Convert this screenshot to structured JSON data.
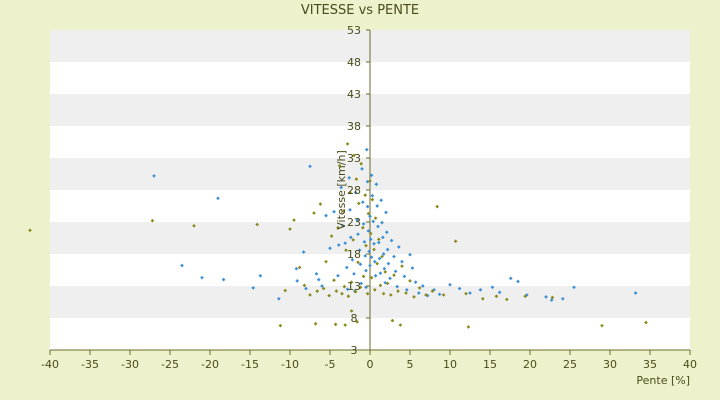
{
  "chart_data": {
    "type": "scatter",
    "title": "VITESSE vs PENTE",
    "xlabel": "Pente [%]",
    "ylabel": "Vitesse [km/h]",
    "xlim": [
      -40,
      40
    ],
    "ylim": [
      3,
      53
    ],
    "x_ticks": [
      -40,
      -35,
      -30,
      -25,
      -20,
      -15,
      -10,
      -5,
      0,
      5,
      10,
      15,
      20,
      25,
      30,
      35,
      40
    ],
    "y_ticks": [
      3,
      8,
      13,
      18,
      23,
      28,
      33,
      38,
      43,
      48,
      53
    ],
    "grid": "horizontal bands",
    "colors": {
      "background": "#eef2cc",
      "band_light": "#ffffff",
      "band_dark": "#efefef",
      "axis": "#6b6b2a",
      "series_blue": "#3a8fd8",
      "series_olive": "#8a8a1c"
    },
    "series": [
      {
        "color": "#3a8fd8",
        "points": [
          [
            -27,
            30.2
          ],
          [
            -19,
            26.7
          ],
          [
            -23.5,
            16.2
          ],
          [
            -21,
            14.3
          ],
          [
            -18.3,
            14.0
          ],
          [
            -14.6,
            12.7
          ],
          [
            -13.7,
            14.6
          ],
          [
            -11.4,
            11.0
          ],
          [
            -9.2,
            15.7
          ],
          [
            -9.1,
            13.8
          ],
          [
            -8.3,
            18.3
          ],
          [
            -8,
            12.6
          ],
          [
            -7.5,
            31.7
          ],
          [
            -6.7,
            14.9
          ],
          [
            -6.4,
            14.0
          ],
          [
            -6,
            13.0
          ],
          [
            -5.5,
            24.0
          ],
          [
            -5,
            18.9
          ],
          [
            -4.5,
            24.6
          ],
          [
            -4,
            14.6
          ],
          [
            -3.9,
            19.4
          ],
          [
            -3.6,
            28.4
          ],
          [
            -3.4,
            22.4
          ],
          [
            -3.1,
            19.7
          ],
          [
            -2.9,
            15.9
          ],
          [
            -2.8,
            12.5
          ],
          [
            -2.6,
            29.9
          ],
          [
            -2.5,
            24.9
          ],
          [
            -2.4,
            20.6
          ],
          [
            -2.2,
            17.1
          ],
          [
            -2,
            14.9
          ],
          [
            -1.9,
            12.2
          ],
          [
            -1.8,
            27.6
          ],
          [
            -1.6,
            23.3
          ],
          [
            -1.5,
            21.1
          ],
          [
            -1.3,
            18.6
          ],
          [
            -1.2,
            16.4
          ],
          [
            -1.1,
            13.4
          ],
          [
            -1,
            31.3
          ],
          [
            -0.9,
            26.1
          ],
          [
            -0.8,
            22.7
          ],
          [
            -0.7,
            19.9
          ],
          [
            -0.6,
            17.7
          ],
          [
            -0.5,
            15.4
          ],
          [
            -0.5,
            12.8
          ],
          [
            -0.4,
            34.3
          ],
          [
            -0.3,
            29.3
          ],
          [
            -0.3,
            25.4
          ],
          [
            -0.2,
            21.6
          ],
          [
            -0.1,
            18.4
          ],
          [
            0,
            16.2
          ],
          [
            0,
            23.9
          ],
          [
            0.1,
            20.3
          ],
          [
            0.2,
            17.5
          ],
          [
            0.2,
            30.3
          ],
          [
            0.3,
            27.1
          ],
          [
            0.4,
            23.1
          ],
          [
            0.5,
            19.6
          ],
          [
            0.6,
            16.8
          ],
          [
            0.7,
            14.6
          ],
          [
            0.8,
            28.9
          ],
          [
            0.9,
            25.5
          ],
          [
            1,
            22.3
          ],
          [
            1.1,
            19.8
          ],
          [
            1.2,
            17.3
          ],
          [
            1.3,
            15.0
          ],
          [
            1.4,
            26.4
          ],
          [
            1.5,
            22.9
          ],
          [
            1.6,
            20.6
          ],
          [
            1.7,
            18.0
          ],
          [
            1.8,
            15.7
          ],
          [
            1.9,
            13.5
          ],
          [
            2,
            24.5
          ],
          [
            2.1,
            21.4
          ],
          [
            2.2,
            18.7
          ],
          [
            2.3,
            16.5
          ],
          [
            2.5,
            14.2
          ],
          [
            2.7,
            20.1
          ],
          [
            3,
            17.6
          ],
          [
            3.2,
            15.3
          ],
          [
            3.4,
            12.9
          ],
          [
            3.6,
            19.1
          ],
          [
            4,
            16.8
          ],
          [
            4.3,
            14.5
          ],
          [
            4.6,
            12.4
          ],
          [
            5,
            17.9
          ],
          [
            5.3,
            15.8
          ],
          [
            5.7,
            13.6
          ],
          [
            6.1,
            11.9
          ],
          [
            6.6,
            13.0
          ],
          [
            7.2,
            11.5
          ],
          [
            8,
            12.4
          ],
          [
            8.7,
            11.7
          ],
          [
            10,
            13.2
          ],
          [
            11.2,
            12.6
          ],
          [
            12.5,
            11.9
          ],
          [
            13.8,
            12.4
          ],
          [
            15.3,
            12.8
          ],
          [
            16.2,
            12.0
          ],
          [
            17.6,
            14.2
          ],
          [
            18.5,
            13.7
          ],
          [
            19.6,
            11.6
          ],
          [
            22,
            11.3
          ],
          [
            22.7,
            10.8
          ],
          [
            24.1,
            11.0
          ],
          [
            25.5,
            12.8
          ],
          [
            33.2,
            11.9
          ]
        ]
      },
      {
        "color": "#8a8a1c",
        "points": [
          [
            -42.5,
            21.7
          ],
          [
            -27.2,
            23.2
          ],
          [
            -22,
            22.4
          ],
          [
            -14.1,
            22.6
          ],
          [
            -11.2,
            6.8
          ],
          [
            -10.6,
            12.3
          ],
          [
            -10,
            21.9
          ],
          [
            -9.5,
            23.3
          ],
          [
            -8.8,
            15.9
          ],
          [
            -8.2,
            13.1
          ],
          [
            -7.5,
            11.6
          ],
          [
            -7,
            24.4
          ],
          [
            -6.6,
            12.2
          ],
          [
            -6.2,
            25.8
          ],
          [
            -5.8,
            12.6
          ],
          [
            -5.5,
            16.8
          ],
          [
            -5.1,
            11.5
          ],
          [
            -4.8,
            20.8
          ],
          [
            -4.5,
            13.9
          ],
          [
            -4.2,
            12.2
          ],
          [
            -4,
            22.1
          ],
          [
            -3.8,
            31.8
          ],
          [
            -3.5,
            11.8
          ],
          [
            -3.3,
            24.7
          ],
          [
            -3.2,
            12.9
          ],
          [
            -3,
            18.6
          ],
          [
            -2.8,
            35.2
          ],
          [
            -2.7,
            11.4
          ],
          [
            -2.5,
            27.6
          ],
          [
            -2.3,
            13.6
          ],
          [
            -2.1,
            20.2
          ],
          [
            -2,
            33.4
          ],
          [
            -1.8,
            12.1
          ],
          [
            -1.7,
            29.7
          ],
          [
            -1.5,
            16.7
          ],
          [
            -1.4,
            25.9
          ],
          [
            -1.2,
            12.8
          ],
          [
            -1.1,
            32.1
          ],
          [
            -0.9,
            22.1
          ],
          [
            -0.8,
            14.5
          ],
          [
            -0.6,
            27.2
          ],
          [
            -0.5,
            19.3
          ],
          [
            -0.3,
            11.8
          ],
          [
            -0.2,
            24.3
          ],
          [
            0,
            29.4
          ],
          [
            0.1,
            21.2
          ],
          [
            0.2,
            14.3
          ],
          [
            0.3,
            26.5
          ],
          [
            0.5,
            18.7
          ],
          [
            0.6,
            12.4
          ],
          [
            0.7,
            23.6
          ],
          [
            0.9,
            16.5
          ],
          [
            1.1,
            20.3
          ],
          [
            1.3,
            13.1
          ],
          [
            1.5,
            17.6
          ],
          [
            1.7,
            11.8
          ],
          [
            1.9,
            15.2
          ],
          [
            2.2,
            13.4
          ],
          [
            2.6,
            11.6
          ],
          [
            3,
            14.7
          ],
          [
            3.5,
            12.2
          ],
          [
            4,
            16.1
          ],
          [
            4.5,
            11.9
          ],
          [
            5,
            13.8
          ],
          [
            5.5,
            11.3
          ],
          [
            6.2,
            12.7
          ],
          [
            7,
            11.6
          ],
          [
            7.8,
            12.2
          ],
          [
            8.4,
            25.4
          ],
          [
            9.2,
            11.6
          ],
          [
            10.7,
            20.0
          ],
          [
            12,
            11.8
          ],
          [
            12.3,
            6.6
          ],
          [
            14.1,
            11.0
          ],
          [
            15.8,
            11.4
          ],
          [
            17.1,
            10.9
          ],
          [
            19.4,
            11.4
          ],
          [
            22.8,
            11.2
          ],
          [
            29,
            6.8
          ],
          [
            34.5,
            7.3
          ],
          [
            -6.8,
            7.1
          ],
          [
            -4.3,
            7.0
          ],
          [
            -3.1,
            6.9
          ],
          [
            -2.3,
            9.1
          ],
          [
            -1.6,
            7.4
          ],
          [
            2.8,
            7.6
          ],
          [
            3.8,
            6.9
          ]
        ]
      }
    ]
  }
}
